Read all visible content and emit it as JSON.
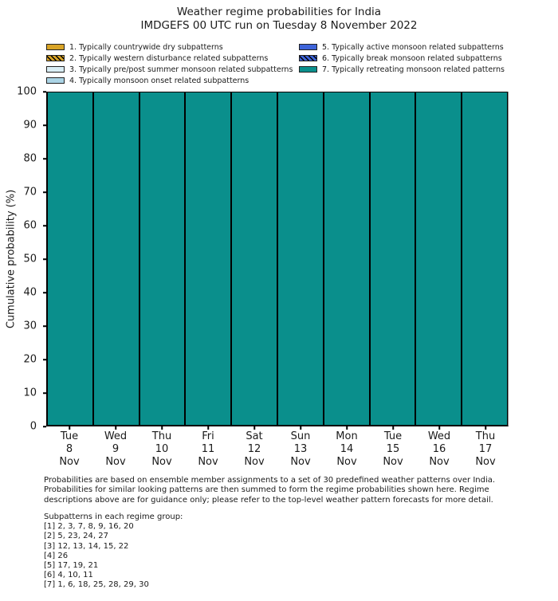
{
  "title": {
    "line1": "Weather regime probabilities for India",
    "line2": "IMDGEFS 00 UTC run on Tuesday 8 November 2022"
  },
  "legend": {
    "left": [
      {
        "label": "1. Typically countrywide dry subpatterns",
        "color": "#d9a427",
        "hatch": false
      },
      {
        "label": "2. Typically western disturbance related subpatterns",
        "color": "#d9a427",
        "hatch": true
      },
      {
        "label": "3. Typically pre/post summer monsoon related subpatterns",
        "color": "#daeef5",
        "hatch": false
      },
      {
        "label": "4. Typically monsoon onset related subpatterns",
        "color": "#abd4e5",
        "hatch": false
      }
    ],
    "right": [
      {
        "label": "5. Typically active monsoon related subpatterns",
        "color": "#3d63d9",
        "hatch": false
      },
      {
        "label": "6. Typically break monsoon related subpatterns",
        "color": "#3d63d9",
        "hatch": true
      },
      {
        "label": "7. Typically retreating monsoon related patterns",
        "color": "#0a8f8c",
        "hatch": false
      }
    ]
  },
  "chart_data": {
    "type": "bar",
    "stacked": true,
    "title": "Weather regime probabilities for India",
    "subtitle": "IMDGEFS 00 UTC run on Tuesday 8 November 2022",
    "ylabel": "Cumulative probability (%)",
    "xlabel": "",
    "ylim": [
      0,
      100
    ],
    "yticks": [
      0,
      10,
      20,
      30,
      40,
      50,
      60,
      70,
      80,
      90,
      100
    ],
    "grid": false,
    "legend_position": "top",
    "categories": [
      {
        "day": "Tue",
        "date": "8",
        "month": "Nov"
      },
      {
        "day": "Wed",
        "date": "9",
        "month": "Nov"
      },
      {
        "day": "Thu",
        "date": "10",
        "month": "Nov"
      },
      {
        "day": "Fri",
        "date": "11",
        "month": "Nov"
      },
      {
        "day": "Sat",
        "date": "12",
        "month": "Nov"
      },
      {
        "day": "Sun",
        "date": "13",
        "month": "Nov"
      },
      {
        "day": "Mon",
        "date": "14",
        "month": "Nov"
      },
      {
        "day": "Tue",
        "date": "15",
        "month": "Nov"
      },
      {
        "day": "Wed",
        "date": "16",
        "month": "Nov"
      },
      {
        "day": "Thu",
        "date": "17",
        "month": "Nov"
      }
    ],
    "series": [
      {
        "name": "1. Typically countrywide dry subpatterns",
        "color": "#d9a427",
        "hatch": false,
        "values": [
          0,
          0,
          0,
          0,
          0,
          0,
          0,
          0,
          0,
          0
        ]
      },
      {
        "name": "2. Typically western disturbance related subpatterns",
        "color": "#d9a427",
        "hatch": true,
        "values": [
          0,
          0,
          0,
          0,
          0,
          0,
          0,
          0,
          0,
          0
        ]
      },
      {
        "name": "3. Typically pre/post summer monsoon related subpatterns",
        "color": "#daeef5",
        "hatch": false,
        "values": [
          0,
          0,
          0,
          0,
          0,
          0,
          0,
          0,
          0,
          0
        ]
      },
      {
        "name": "4. Typically monsoon onset related subpatterns",
        "color": "#abd4e5",
        "hatch": false,
        "values": [
          0,
          0,
          0,
          0,
          0,
          0,
          0,
          0,
          0,
          0
        ]
      },
      {
        "name": "5. Typically active monsoon related subpatterns",
        "color": "#3d63d9",
        "hatch": false,
        "values": [
          0,
          0,
          0,
          0,
          0,
          0,
          0,
          0,
          0,
          0
        ]
      },
      {
        "name": "6. Typically break monsoon related subpatterns",
        "color": "#3d63d9",
        "hatch": true,
        "values": [
          0,
          0,
          0,
          0,
          0,
          0,
          0,
          0,
          0,
          0
        ]
      },
      {
        "name": "7. Typically retreating monsoon related patterns",
        "color": "#0a8f8c",
        "hatch": false,
        "values": [
          100,
          100,
          100,
          100,
          100,
          100,
          100,
          100,
          100,
          100
        ]
      }
    ]
  },
  "footer": {
    "lines": [
      "Probabilities are based on ensemble member assignments to a set of 30 predefined weather patterns over India.",
      "Probabilities for similar looking patterns are then summed to form the regime probabilities shown here. Regime",
      "descriptions above are for guidance only; please refer to the top-level weather pattern forecasts for more detail."
    ]
  },
  "subpatterns": {
    "heading": "Subpatterns in each regime group:",
    "groups": [
      "[1] 2, 3, 7, 8, 9, 16, 20",
      "[2] 5, 23, 24, 27",
      "[3] 12, 13, 14, 15, 22",
      "[4] 26",
      "[5] 17, 19, 21",
      "[6] 4, 10, 11",
      "[7] 1, 6, 18, 25, 28, 29, 30"
    ]
  }
}
